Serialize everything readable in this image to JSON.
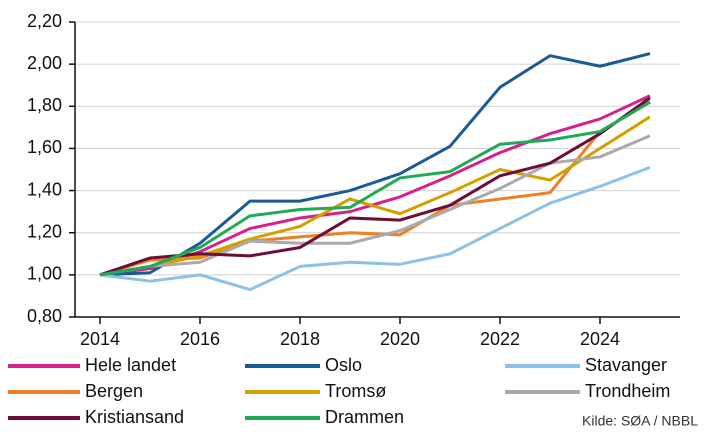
{
  "chart_data": {
    "type": "line",
    "x": [
      2014,
      2015,
      2016,
      2017,
      2018,
      2019,
      2020,
      2021,
      2022,
      2023,
      2024,
      2025
    ],
    "xlim": [
      2013.5,
      2025.6
    ],
    "xticks": [
      2014,
      2016,
      2018,
      2020,
      2022,
      2024
    ],
    "ylim": [
      0.8,
      2.2
    ],
    "yticks": [
      {
        "value": 0.8,
        "label": "0,80"
      },
      {
        "value": 1.0,
        "label": "1,00"
      },
      {
        "value": 1.2,
        "label": "1,20"
      },
      {
        "value": 1.4,
        "label": "1,40"
      },
      {
        "value": 1.6,
        "label": "1,60"
      },
      {
        "value": 1.8,
        "label": "1,80"
      },
      {
        "value": 2.0,
        "label": "2,00"
      },
      {
        "value": 2.2,
        "label": "2,20"
      }
    ],
    "grid": true,
    "legend": "bottom",
    "source": "Kilde: SØA / NBBL",
    "series": [
      {
        "name": "Hele landet",
        "color": "#d6218c",
        "values": [
          1.0,
          1.03,
          1.11,
          1.22,
          1.27,
          1.3,
          1.37,
          1.47,
          1.58,
          1.67,
          1.74,
          1.85
        ]
      },
      {
        "name": "Oslo",
        "color": "#1a5a96",
        "values": [
          1.0,
          1.01,
          1.15,
          1.35,
          1.35,
          1.4,
          1.48,
          1.61,
          1.89,
          2.04,
          1.99,
          2.05
        ]
      },
      {
        "name": "Stavanger",
        "color": "#8cc1e8",
        "values": [
          1.0,
          0.97,
          1.0,
          0.93,
          1.04,
          1.06,
          1.05,
          1.1,
          1.22,
          1.34,
          1.42,
          1.51
        ]
      },
      {
        "name": "Bergen",
        "color": "#f07f22",
        "values": [
          1.0,
          1.07,
          1.08,
          1.16,
          1.18,
          1.2,
          1.19,
          1.33,
          1.36,
          1.39,
          1.68,
          1.82
        ]
      },
      {
        "name": "Tromsø",
        "color": "#d4a000",
        "values": [
          1.0,
          1.04,
          1.09,
          1.17,
          1.23,
          1.36,
          1.29,
          1.39,
          1.5,
          1.45,
          1.6,
          1.75
        ]
      },
      {
        "name": "Trondheim",
        "color": "#aaaaaa",
        "values": [
          1.0,
          1.04,
          1.06,
          1.16,
          1.15,
          1.15,
          1.21,
          1.31,
          1.41,
          1.53,
          1.56,
          1.66
        ]
      },
      {
        "name": "Kristiansand",
        "color": "#6b0f3a",
        "values": [
          1.0,
          1.08,
          1.1,
          1.09,
          1.13,
          1.27,
          1.26,
          1.33,
          1.47,
          1.53,
          1.67,
          1.84
        ]
      },
      {
        "name": "Drammen",
        "color": "#1faa55",
        "values": [
          1.0,
          1.04,
          1.13,
          1.28,
          1.31,
          1.32,
          1.46,
          1.49,
          1.62,
          1.64,
          1.68,
          1.82
        ]
      }
    ]
  }
}
